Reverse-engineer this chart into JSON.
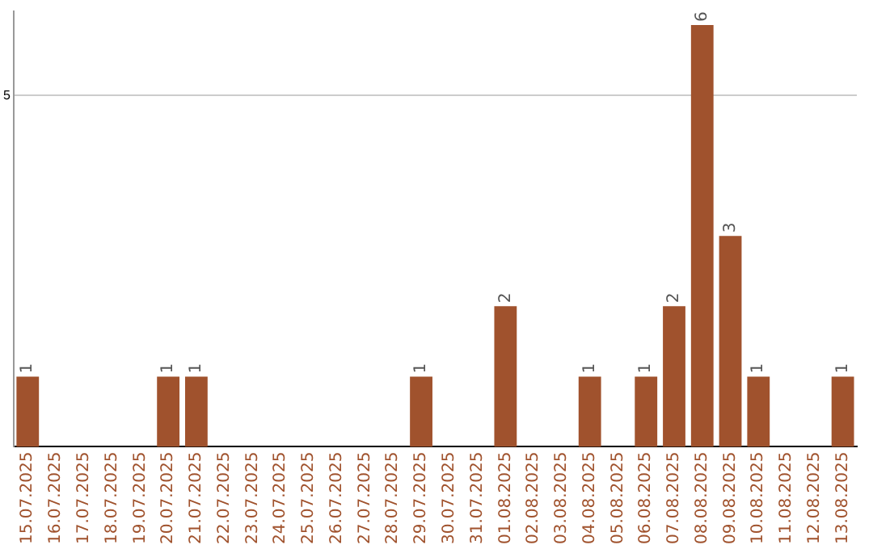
{
  "chart_data": {
    "type": "bar",
    "categories": [
      "15.07.2025",
      "16.07.2025",
      "17.07.2025",
      "18.07.2025",
      "19.07.2025",
      "20.07.2025",
      "21.07.2025",
      "22.07.2025",
      "23.07.2025",
      "24.07.2025",
      "25.07.2025",
      "26.07.2025",
      "27.07.2025",
      "28.07.2025",
      "29.07.2025",
      "30.07.2025",
      "31.07.2025",
      "01.08.2025",
      "02.08.2025",
      "03.08.2025",
      "04.08.2025",
      "05.08.2025",
      "06.08.2025",
      "07.08.2025",
      "08.08.2025",
      "09.08.2025",
      "10.08.2025",
      "11.08.2025",
      "12.08.2025",
      "13.08.2025"
    ],
    "values": [
      1,
      0,
      0,
      0,
      0,
      1,
      1,
      0,
      0,
      0,
      0,
      0,
      0,
      0,
      1,
      0,
      0,
      2,
      0,
      0,
      1,
      0,
      1,
      2,
      6,
      3,
      1,
      0,
      0,
      1
    ],
    "value_labels": [
      "1",
      null,
      null,
      null,
      null,
      "1",
      "1",
      null,
      null,
      null,
      null,
      null,
      null,
      null,
      "1",
      null,
      null,
      "2",
      null,
      null,
      "1",
      null,
      "1",
      "2",
      "6",
      "3",
      "1",
      null,
      null,
      "1"
    ],
    "color": "#a0522d",
    "ylim": [
      0,
      6.2
    ],
    "yticks": [
      5
    ],
    "grid": "y",
    "legend": false
  }
}
